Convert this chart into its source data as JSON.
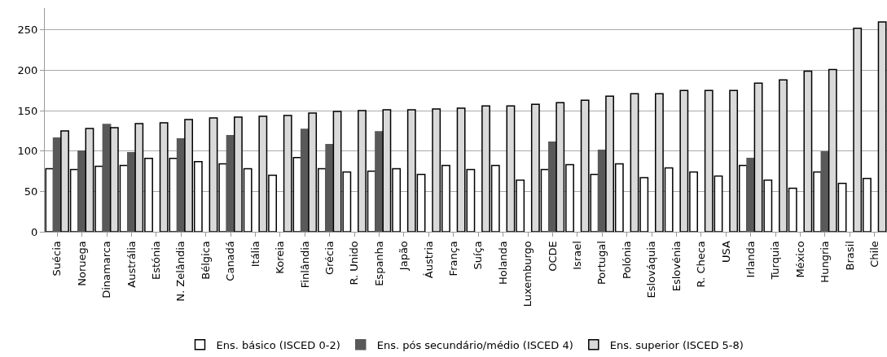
{
  "chart_data": {
    "type": "bar",
    "categories": [
      "Suécia",
      "Noruega",
      "Dinamarca",
      "Austrália",
      "Estónia",
      "N. Zelândia",
      "Bélgica",
      "Canadá",
      "Itália",
      "Koreia",
      "Finlândia",
      "Grécia",
      "R. Unido",
      "Espanha",
      "Japão",
      "Áustria",
      "França",
      "Suíça",
      "Holanda",
      "Luxemburgo",
      "OCDE",
      "Israel",
      "Portugal",
      "Polónia",
      "Eslováquia",
      "Eslovénia",
      "R. Checa",
      "USA",
      "Irlanda",
      "Turquia",
      "México",
      "Hungria",
      "Brasil",
      "Chile"
    ],
    "series": [
      {
        "name": "Ens. básico (ISCED 0-2)",
        "color": "#ffffff",
        "values": [
          78,
          77,
          81,
          82,
          91,
          91,
          87,
          84,
          78,
          70,
          92,
          78,
          74,
          75,
          78,
          71,
          82,
          77,
          82,
          64,
          77,
          83,
          71,
          84,
          67,
          79,
          74,
          69,
          82,
          64,
          54,
          74,
          60,
          66
        ]
      },
      {
        "name": "Ens. pós secundário/médio (ISCED 4)",
        "color": "#595959",
        "values": [
          116,
          100,
          133,
          98,
          null,
          115,
          null,
          119,
          null,
          null,
          127,
          108,
          null,
          124,
          null,
          null,
          null,
          null,
          null,
          null,
          111,
          null,
          101,
          null,
          null,
          null,
          null,
          null,
          91,
          null,
          null,
          99,
          null,
          null
        ]
      },
      {
        "name": "Ens. superior (ISCED 5-8)",
        "color": "#d9d9d9",
        "values": [
          125,
          128,
          129,
          134,
          135,
          139,
          141,
          142,
          143,
          144,
          147,
          149,
          150,
          151,
          151,
          152,
          153,
          156,
          156,
          158,
          160,
          163,
          168,
          171,
          171,
          175,
          175,
          175,
          184,
          188,
          199,
          201,
          252,
          260
        ]
      }
    ],
    "ylim": [
      0,
      277
    ],
    "yticks": [
      0,
      50,
      100,
      150,
      200,
      250
    ],
    "grid": "y",
    "legend": "bottom"
  }
}
